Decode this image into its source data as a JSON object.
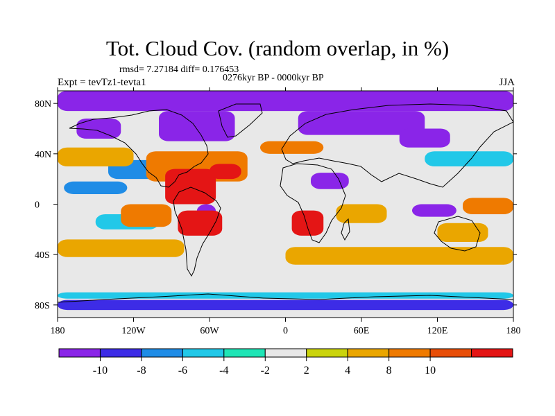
{
  "title": "Tot. Cloud Cov. (random overlap, in %)",
  "stats": "rmsd= 7.27184 diff= 0.176453",
  "period": "0276kyr BP - 0000kyr BP",
  "experiment": "Expt = tevTz1-tevta1",
  "season": "JJA",
  "map": {
    "projection": "cylindrical-equidistant",
    "lon_ticks": [
      {
        "value": -180,
        "label": "180"
      },
      {
        "value": -120,
        "label": "120W"
      },
      {
        "value": -60,
        "label": "60W"
      },
      {
        "value": 0,
        "label": "0"
      },
      {
        "value": 60,
        "label": "60E"
      },
      {
        "value": 120,
        "label": "120E"
      },
      {
        "value": 180,
        "label": "180"
      }
    ],
    "lat_ticks": [
      {
        "value": 80,
        "label": "80N"
      },
      {
        "value": 40,
        "label": "40N"
      },
      {
        "value": 0,
        "label": "0"
      },
      {
        "value": -40,
        "label": "40S"
      },
      {
        "value": -80,
        "label": "80S"
      }
    ],
    "anomaly_regions": [
      {
        "level": -12,
        "lon": [
          -180,
          180
        ],
        "lat": [
          74,
          90
        ]
      },
      {
        "level": -12,
        "lon": [
          -100,
          -40
        ],
        "lat": [
          50,
          74
        ]
      },
      {
        "level": -12,
        "lon": [
          -165,
          -130
        ],
        "lat": [
          52,
          68
        ]
      },
      {
        "level": -12,
        "lon": [
          10,
          110
        ],
        "lat": [
          55,
          74
        ]
      },
      {
        "level": -12,
        "lon": [
          90,
          130
        ],
        "lat": [
          45,
          60
        ]
      },
      {
        "level": -12,
        "lon": [
          20,
          50
        ],
        "lat": [
          12,
          25
        ]
      },
      {
        "level": -12,
        "lon": [
          -70,
          -55
        ],
        "lat": [
          -12,
          0
        ]
      },
      {
        "level": -12,
        "lon": [
          100,
          135
        ],
        "lat": [
          -10,
          0
        ]
      },
      {
        "level": -8,
        "lon": [
          -180,
          180
        ],
        "lat": [
          -84,
          -76
        ]
      },
      {
        "level": -6,
        "lon": [
          -140,
          -90
        ],
        "lat": [
          20,
          35
        ]
      },
      {
        "level": -6,
        "lon": [
          -175,
          -125
        ],
        "lat": [
          8,
          18
        ]
      },
      {
        "level": -4,
        "lon": [
          -180,
          180
        ],
        "lat": [
          -75,
          -70
        ]
      },
      {
        "level": -4,
        "lon": [
          -150,
          -100
        ],
        "lat": [
          -20,
          -8
        ]
      },
      {
        "level": -4,
        "lon": [
          110,
          180
        ],
        "lat": [
          30,
          42
        ]
      },
      {
        "level": 6,
        "lon": [
          -180,
          -80
        ],
        "lat": [
          -42,
          -28
        ]
      },
      {
        "level": 6,
        "lon": [
          0,
          180
        ],
        "lat": [
          -48,
          -34
        ]
      },
      {
        "level": 6,
        "lon": [
          -180,
          -120
        ],
        "lat": [
          30,
          45
        ]
      },
      {
        "level": 6,
        "lon": [
          40,
          80
        ],
        "lat": [
          -15,
          0
        ]
      },
      {
        "level": 6,
        "lon": [
          120,
          160
        ],
        "lat": [
          -30,
          -15
        ]
      },
      {
        "level": 9,
        "lon": [
          -110,
          -30
        ],
        "lat": [
          18,
          42
        ]
      },
      {
        "level": 9,
        "lon": [
          -130,
          -90
        ],
        "lat": [
          -18,
          0
        ]
      },
      {
        "level": 9,
        "lon": [
          -20,
          30
        ],
        "lat": [
          40,
          50
        ]
      },
      {
        "level": 9,
        "lon": [
          140,
          180
        ],
        "lat": [
          -8,
          5
        ]
      },
      {
        "level": 12,
        "lon": [
          -95,
          -55
        ],
        "lat": [
          0,
          28
        ]
      },
      {
        "level": 12,
        "lon": [
          -85,
          -50
        ],
        "lat": [
          -25,
          -5
        ]
      },
      {
        "level": 12,
        "lon": [
          5,
          30
        ],
        "lat": [
          -25,
          -5
        ]
      },
      {
        "level": 12,
        "lon": [
          -60,
          -35
        ],
        "lat": [
          20,
          32
        ]
      }
    ]
  },
  "colorbar": {
    "labels": [
      "-10",
      "-8",
      "-6",
      "-4",
      "-2",
      "2",
      "4",
      "8",
      "10"
    ],
    "colors": [
      "#8a25e8",
      "#3d2ce6",
      "#1f8ce6",
      "#22c8e8",
      "#1fe5b6",
      "#e8e8e8",
      "#cad40d",
      "#eaa600",
      "#ef7a00",
      "#e84e08",
      "#e41515"
    ]
  },
  "palette": {
    "-12": "#8a25e8",
    "-8": "#3d2ce6",
    "-6": "#1f8ce6",
    "-4": "#22c8e8",
    "4": "#cad40d",
    "6": "#eaa600",
    "9": "#ef7a00",
    "12": "#e41515"
  }
}
